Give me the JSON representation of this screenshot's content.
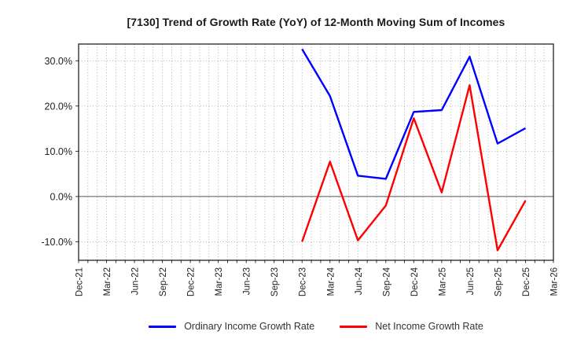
{
  "title": "[7130]  Trend of Growth Rate (YoY) of 12-Month Moving Sum of Incomes",
  "legend": {
    "items": [
      {
        "label": "Ordinary Income Growth Rate",
        "color": "#0000ff"
      },
      {
        "label": "Net Income Growth Rate",
        "color": "#ff0000"
      }
    ],
    "position": "bottom-center"
  },
  "chart_data": {
    "type": "line",
    "title": "[7130]  Trend of Growth Rate (YoY) of 12-Month Moving Sum of Incomes",
    "x_tick_labels": [
      "Dec-21",
      "Mar-22",
      "Jun-22",
      "Sep-22",
      "Dec-22",
      "Mar-23",
      "Jun-23",
      "Sep-23",
      "Dec-23",
      "Mar-24",
      "Jun-24",
      "Sep-24",
      "Dec-24",
      "Mar-25",
      "Jun-25",
      "Sep-25",
      "Dec-25",
      "Mar-26"
    ],
    "x_tick_month_index": [
      0,
      3,
      6,
      9,
      12,
      15,
      18,
      21,
      24,
      27,
      30,
      33,
      36,
      39,
      42,
      45,
      48,
      51
    ],
    "x_months_range": [
      0,
      51
    ],
    "y_ticks": [
      -10,
      0,
      10,
      20,
      30
    ],
    "y_tick_suffix": "%",
    "ylim": [
      -14.1,
      33.7
    ],
    "grid": {
      "vertical": "monthly-dotted",
      "horizontal": "dotted-every-10pct",
      "zero_line": "solid"
    },
    "colors": {
      "grid": "#a8a8a8",
      "zero_line": "#555555",
      "frame": "#222222",
      "tick_text": "#222222"
    },
    "series": [
      {
        "name": "Ordinary Income Growth Rate",
        "color": "#0000ff",
        "x_labels": [
          "Dec-23",
          "Mar-24",
          "Jun-24",
          "Sep-24",
          "Dec-24",
          "Mar-25",
          "Jun-25",
          "Sep-25",
          "Dec-25"
        ],
        "x_month_index": [
          24,
          27,
          30,
          33,
          36,
          39,
          42,
          45,
          48
        ],
        "values": [
          32.6,
          22.2,
          4.6,
          3.9,
          18.7,
          19.1,
          30.9,
          11.7,
          15.1
        ]
      },
      {
        "name": "Net Income Growth Rate",
        "color": "#ff0000",
        "x_labels": [
          "Dec-23",
          "Mar-24",
          "Jun-24",
          "Sep-24",
          "Dec-24",
          "Mar-25",
          "Jun-25",
          "Sep-25",
          "Dec-25"
        ],
        "x_month_index": [
          24,
          27,
          30,
          33,
          36,
          39,
          42,
          45,
          48
        ],
        "values": [
          -10.0,
          7.7,
          -9.7,
          -2.0,
          17.3,
          0.9,
          24.6,
          -11.9,
          -0.9
        ]
      }
    ],
    "legend_entries": [
      "Ordinary Income Growth Rate",
      "Net Income Growth Rate"
    ]
  }
}
